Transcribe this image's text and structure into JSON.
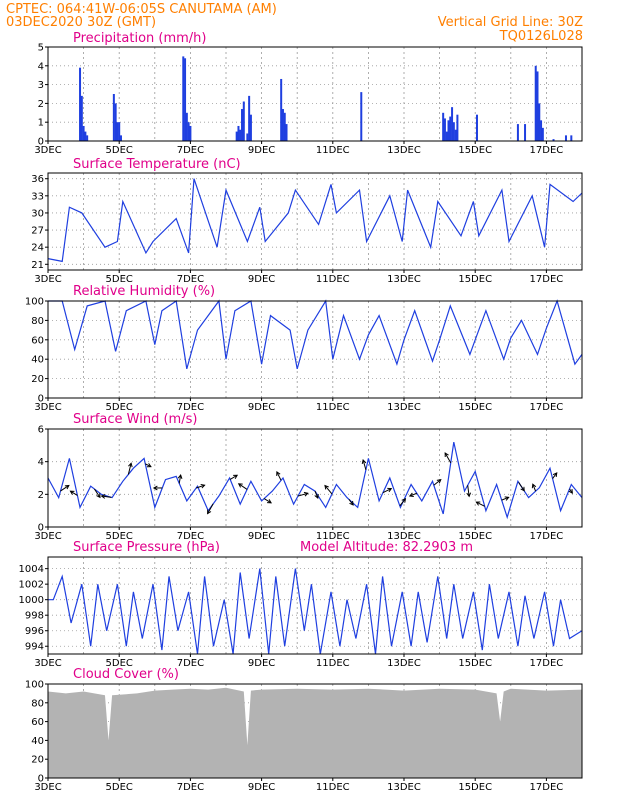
{
  "header": {
    "station": "CPTEC:   064:41W-06:05S   CANUTAMA (AM)",
    "init_time": "03DEC2020 30Z (GMT)",
    "grid_note": "Vertical Grid Line: 30Z",
    "code": "TQ0126L028"
  },
  "model_altitude": "Model Altitude: 82.2903 m",
  "x_tick_labels": [
    "3DEC",
    "5DEC",
    "7DEC",
    "9DEC",
    "11DEC",
    "13DEC",
    "15DEC",
    "17DEC"
  ],
  "colors": {
    "series": "#1f3fe0",
    "title": "#e0008a",
    "header": "#ff7f00",
    "cloud": "#b3b3b3"
  },
  "chart_data": [
    {
      "type": "bar",
      "title": "Precipitation (mm/h)",
      "ylim": [
        0,
        5
      ],
      "yticks": [
        "0",
        "1",
        "2",
        "3",
        "4",
        "5"
      ],
      "x_unit": "days since 3DEC",
      "xlim": [
        0,
        15
      ],
      "bars": [
        [
          0.9,
          3.9
        ],
        [
          0.95,
          2.4
        ],
        [
          1.0,
          0.8
        ],
        [
          1.05,
          0.5
        ],
        [
          1.1,
          0.3
        ],
        [
          1.85,
          2.5
        ],
        [
          1.9,
          2.0
        ],
        [
          1.95,
          1.0
        ],
        [
          2.0,
          1.0
        ],
        [
          2.05,
          0.3
        ],
        [
          3.8,
          4.5
        ],
        [
          3.85,
          4.4
        ],
        [
          3.9,
          1.5
        ],
        [
          3.95,
          1.0
        ],
        [
          4.0,
          0.8
        ],
        [
          5.3,
          0.5
        ],
        [
          5.35,
          0.8
        ],
        [
          5.4,
          0.6
        ],
        [
          5.45,
          1.7
        ],
        [
          5.5,
          2.1
        ],
        [
          5.6,
          0.4
        ],
        [
          5.65,
          2.4
        ],
        [
          5.7,
          1.4
        ],
        [
          6.55,
          3.3
        ],
        [
          6.6,
          1.7
        ],
        [
          6.65,
          1.5
        ],
        [
          6.7,
          0.9
        ],
        [
          8.8,
          2.6
        ],
        [
          11.1,
          1.5
        ],
        [
          11.15,
          1.2
        ],
        [
          11.2,
          0.5
        ],
        [
          11.25,
          1.1
        ],
        [
          11.3,
          1.3
        ],
        [
          11.35,
          1.8
        ],
        [
          11.4,
          1.0
        ],
        [
          11.45,
          0.6
        ],
        [
          11.5,
          1.4
        ],
        [
          12.05,
          1.4
        ],
        [
          13.2,
          0.9
        ],
        [
          13.4,
          0.9
        ],
        [
          13.7,
          4.0
        ],
        [
          13.75,
          3.7
        ],
        [
          13.8,
          2.0
        ],
        [
          13.85,
          1.1
        ],
        [
          13.9,
          0.7
        ],
        [
          14.2,
          0.1
        ],
        [
          14.55,
          0.3
        ],
        [
          14.7,
          0.3
        ]
      ]
    },
    {
      "type": "line",
      "title": "Surface Temperature (nC)",
      "ylim": [
        20,
        37
      ],
      "yticks": [
        "21",
        "24",
        "27",
        "30",
        "33",
        "36"
      ],
      "xlim": [
        0,
        15
      ],
      "x": [
        0.0,
        0.4,
        0.6,
        0.95,
        1.6,
        1.95,
        2.1,
        2.75,
        2.95,
        3.6,
        3.95,
        4.1,
        4.75,
        5.0,
        5.6,
        5.95,
        6.1,
        6.75,
        6.95,
        7.6,
        7.95,
        8.1,
        8.75,
        8.95,
        9.6,
        9.95,
        10.1,
        10.75,
        10.95,
        11.6,
        11.95,
        12.1,
        12.75,
        12.95,
        13.6,
        13.95,
        14.1,
        14.75,
        15.0
      ],
      "y": [
        22.0,
        21.5,
        31.0,
        30.0,
        24.0,
        25.0,
        32.0,
        23.0,
        25.0,
        29.0,
        23.0,
        36.0,
        24.0,
        34.0,
        25.0,
        31.0,
        25.0,
        30.0,
        34.0,
        28.0,
        35.0,
        30.0,
        34.0,
        25.0,
        33.0,
        25.0,
        34.0,
        24.0,
        32.0,
        26.0,
        32.0,
        26.0,
        34.0,
        25.0,
        33.0,
        24.0,
        35.0,
        32.0,
        33.5
      ]
    },
    {
      "type": "line",
      "title": "Relative Humidity (%)",
      "ylim": [
        0,
        100
      ],
      "yticks": [
        "0",
        "20",
        "40",
        "60",
        "80",
        "100"
      ],
      "xlim": [
        0,
        15
      ],
      "x": [
        0.0,
        0.4,
        0.75,
        1.1,
        1.6,
        1.9,
        2.2,
        2.75,
        3.0,
        3.2,
        3.6,
        3.9,
        4.2,
        4.8,
        5.0,
        5.25,
        5.7,
        6.0,
        6.25,
        6.8,
        7.0,
        7.3,
        7.8,
        8.0,
        8.3,
        8.75,
        9.0,
        9.3,
        9.8,
        10.0,
        10.3,
        10.8,
        11.0,
        11.3,
        11.85,
        12.0,
        12.3,
        12.8,
        13.0,
        13.3,
        13.75,
        14.0,
        14.3,
        14.8,
        15.0
      ],
      "y": [
        100.0,
        100.0,
        50.0,
        95.0,
        100.0,
        48.0,
        90.0,
        100.0,
        55.0,
        90.0,
        100.0,
        30.0,
        70.0,
        100.0,
        40.0,
        90.0,
        100.0,
        35.0,
        85.0,
        70.0,
        30.0,
        70.0,
        100.0,
        40.0,
        85.0,
        40.0,
        65.0,
        85.0,
        35.0,
        60.0,
        90.0,
        38.0,
        60.0,
        95.0,
        45.0,
        60.0,
        90.0,
        40.0,
        62.0,
        80.0,
        45.0,
        72.0,
        100.0,
        35.0,
        45.0
      ]
    },
    {
      "type": "line",
      "title": "Surface Wind (m/s)",
      "ylim": [
        0,
        6
      ],
      "yticks": [
        "0",
        "2",
        "4",
        "6"
      ],
      "xlim": [
        0,
        15
      ],
      "x": [
        0.0,
        0.3,
        0.6,
        0.9,
        1.2,
        1.5,
        1.8,
        2.1,
        2.4,
        2.7,
        3.0,
        3.3,
        3.6,
        3.9,
        4.2,
        4.5,
        4.8,
        5.1,
        5.4,
        5.7,
        6.0,
        6.3,
        6.6,
        6.9,
        7.2,
        7.5,
        7.8,
        8.1,
        8.4,
        8.7,
        9.0,
        9.3,
        9.6,
        9.9,
        10.2,
        10.5,
        10.8,
        11.1,
        11.4,
        11.7,
        12.0,
        12.3,
        12.6,
        12.9,
        13.2,
        13.5,
        13.8,
        14.1,
        14.4,
        14.7,
        15.0
      ],
      "y": [
        3.0,
        1.8,
        4.2,
        1.2,
        2.5,
        2.0,
        1.8,
        2.8,
        3.6,
        4.2,
        1.2,
        2.9,
        3.1,
        1.6,
        2.5,
        1.0,
        1.9,
        3.0,
        1.4,
        2.8,
        1.6,
        2.2,
        3.0,
        1.4,
        2.6,
        2.2,
        1.2,
        2.6,
        1.8,
        1.2,
        4.2,
        1.6,
        3.0,
        1.2,
        2.6,
        1.6,
        2.8,
        0.8,
        5.2,
        2.2,
        3.4,
        1.0,
        2.6,
        0.6,
        2.8,
        1.8,
        2.4,
        3.6,
        1.0,
        2.6,
        1.8
      ],
      "vectors_u": [
        0.6,
        -0.5,
        0.4,
        -0.7,
        0.2,
        0.4,
        -0.6,
        0.1,
        0.6,
        -0.4,
        0.5,
        -0.6,
        0.5,
        -0.3,
        0.7,
        0.2,
        -0.5,
        0.3,
        -0.2,
        0.6,
        0.4,
        -0.5,
        0.5,
        -0.4,
        0.1,
        -0.6,
        0.5,
        0.4,
        -0.2,
        0.3,
        0.2
      ],
      "vectors_v": [
        0.4,
        0.3,
        -0.6,
        0.1,
        0.8,
        -0.2,
        0.0,
        0.6,
        0.2,
        -0.7,
        0.3,
        0.4,
        -0.3,
        0.6,
        0.2,
        -0.5,
        0.6,
        -0.4,
        0.7,
        0.3,
        0.5,
        -0.2,
        0.4,
        0.7,
        -0.8,
        0.3,
        0.2,
        -0.6,
        0.5,
        0.4,
        -0.3
      ]
    },
    {
      "type": "line",
      "title": "Surface Pressure (hPa)",
      "ylim": [
        993.0,
        1005.5
      ],
      "yticks": [
        "994",
        "996",
        "998",
        "1000",
        "1002",
        "1004"
      ],
      "xlim": [
        0,
        15
      ],
      "x": [
        0.0,
        0.15,
        0.4,
        0.65,
        0.95,
        1.2,
        1.4,
        1.65,
        1.95,
        2.2,
        2.4,
        2.65,
        2.95,
        3.2,
        3.4,
        3.65,
        3.95,
        4.2,
        4.4,
        4.65,
        4.95,
        5.2,
        5.4,
        5.65,
        5.95,
        6.2,
        6.4,
        6.65,
        6.95,
        7.2,
        7.4,
        7.65,
        7.95,
        8.2,
        8.4,
        8.65,
        8.95,
        9.2,
        9.4,
        9.65,
        9.95,
        10.2,
        10.4,
        10.65,
        10.95,
        11.2,
        11.4,
        11.65,
        11.95,
        12.2,
        12.4,
        12.65,
        12.95,
        13.2,
        13.4,
        13.65,
        13.95,
        14.2,
        14.4,
        14.65,
        15.0
      ],
      "y": [
        1000.0,
        1000.0,
        1003.0,
        997.0,
        1002.0,
        994.0,
        1002.0,
        996.0,
        1002.0,
        994.0,
        1001.0,
        995.0,
        1002.0,
        993.5,
        1003.0,
        996.0,
        1001.0,
        993.0,
        1003.0,
        994.0,
        1000.0,
        993.0,
        1003.5,
        995.0,
        1004.0,
        993.0,
        1003.0,
        994.0,
        1004.0,
        996.0,
        1002.0,
        993.0,
        1001.0,
        994.0,
        1000.0,
        995.0,
        1002.0,
        993.0,
        1003.0,
        994.0,
        1001.0,
        994.0,
        1001.0,
        994.5,
        1003.0,
        995.0,
        1002.0,
        995.0,
        1001.0,
        993.5,
        1002.0,
        995.0,
        1001.0,
        994.0,
        1000.5,
        995.0,
        1001.0,
        994.0,
        1000.0,
        995.0,
        996.0
      ]
    },
    {
      "type": "area",
      "title": "Cloud Cover (%)",
      "ylim": [
        0,
        100
      ],
      "yticks": [
        "0",
        "20",
        "40",
        "60",
        "80",
        "100"
      ],
      "xlim": [
        0,
        15
      ],
      "x": [
        0.0,
        0.5,
        1.0,
        1.6,
        1.7,
        1.8,
        2.5,
        3.0,
        3.5,
        4.0,
        4.5,
        5.0,
        5.5,
        5.6,
        5.7,
        6.0,
        7.0,
        8.0,
        9.0,
        10.0,
        11.0,
        12.0,
        12.6,
        12.7,
        12.8,
        13.0,
        14.0,
        15.0
      ],
      "y": [
        92,
        90,
        92,
        88,
        40,
        88,
        90,
        93,
        94,
        95,
        94,
        96,
        92,
        35,
        93,
        94,
        95,
        94,
        95,
        93,
        95,
        94,
        90,
        60,
        92,
        95,
        93,
        94
      ]
    }
  ]
}
